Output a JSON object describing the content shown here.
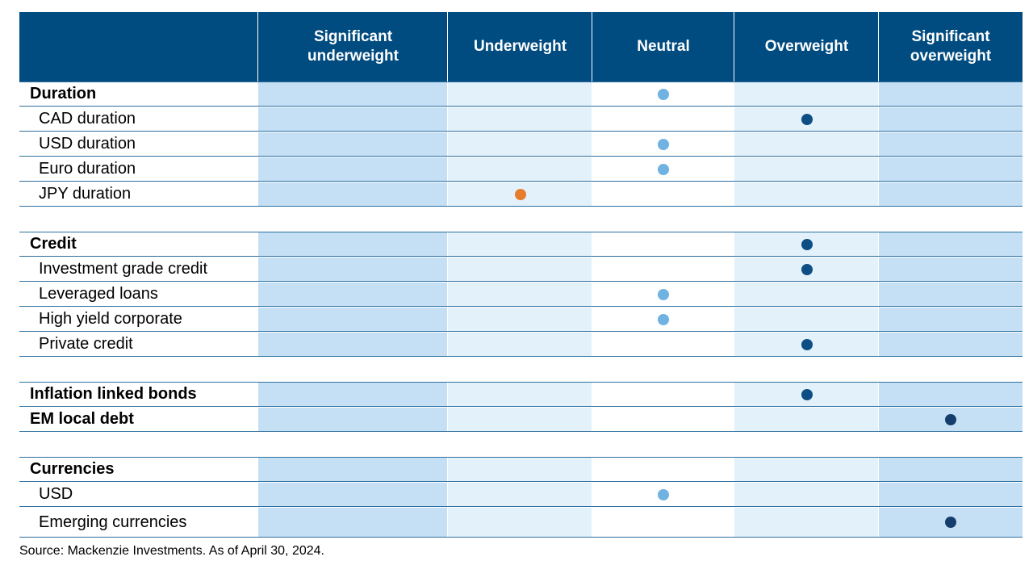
{
  "colors": {
    "header_bg": "#004b7f",
    "col_dark": "#c5e0f4",
    "col_light": "#e3f1fa",
    "neutral_dot": "#70b2e2",
    "overweight_dot": "#0d4e84",
    "sig_overweight_dot": "#163e6c",
    "underweight_dot": "#e67d2c"
  },
  "chart_data": {
    "type": "table",
    "columns": [
      "Significant underweight",
      "Underweight",
      "Neutral",
      "Overweight",
      "Significant overweight"
    ],
    "rows": [
      {
        "label": "Duration",
        "kind": "header",
        "position": 2
      },
      {
        "label": "CAD duration",
        "kind": "sub",
        "position": 3
      },
      {
        "label": "USD duration",
        "kind": "sub",
        "position": 2
      },
      {
        "label": "Euro duration",
        "kind": "sub",
        "position": 2
      },
      {
        "label": "JPY duration",
        "kind": "sub",
        "position": 1
      },
      {
        "kind": "spacer"
      },
      {
        "label": "Credit",
        "kind": "header",
        "position": 3
      },
      {
        "label": "Investment grade credit",
        "kind": "sub",
        "position": 3
      },
      {
        "label": "Leveraged loans",
        "kind": "sub",
        "position": 2
      },
      {
        "label": "High yield corporate",
        "kind": "sub",
        "position": 2
      },
      {
        "label": "Private credit",
        "kind": "sub",
        "position": 3
      },
      {
        "kind": "spacer"
      },
      {
        "label": "Inflation linked bonds",
        "kind": "header",
        "position": 3
      },
      {
        "label": "EM local debt",
        "kind": "header",
        "position": 4
      },
      {
        "kind": "spacer"
      },
      {
        "label": "Currencies",
        "kind": "header"
      },
      {
        "label": "USD",
        "kind": "sub",
        "position": 2
      },
      {
        "label": "Emerging currencies",
        "kind": "sub",
        "position": 4
      }
    ],
    "source": "Source: Mackenzie Investments. As of April 30, 2024."
  }
}
